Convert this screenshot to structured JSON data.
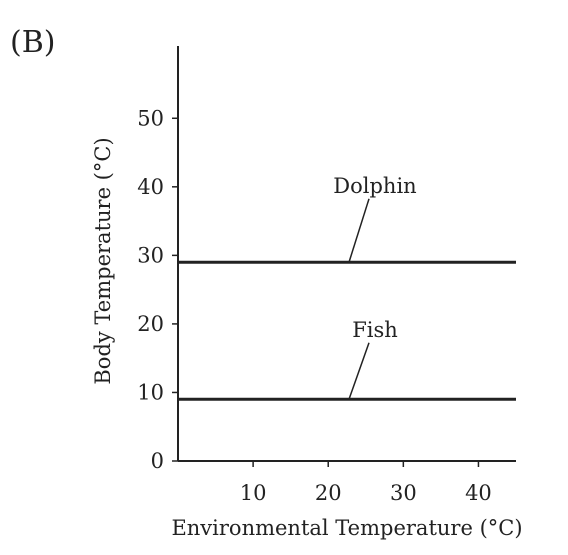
{
  "panel_label": "(B)",
  "chart_data": {
    "type": "line",
    "title": "",
    "xlabel": "Environmental Temperature (°C)",
    "ylabel": "Body Temperature (°C)",
    "xlim": [
      0,
      45
    ],
    "ylim": [
      0,
      55
    ],
    "xticks": [
      10,
      20,
      30,
      40
    ],
    "yticks": [
      0,
      10,
      20,
      30,
      40,
      50
    ],
    "grid": false,
    "legend": "none",
    "series": [
      {
        "name": "Dolphin",
        "x": [
          0,
          45
        ],
        "y": [
          29,
          29
        ],
        "label_at_x": 22.5,
        "label_y": 40,
        "color": "#222222"
      },
      {
        "name": "Fish",
        "x": [
          0,
          45
        ],
        "y": [
          9,
          9
        ],
        "label_at_x": 22.5,
        "label_y": 19,
        "color": "#222222"
      }
    ]
  }
}
